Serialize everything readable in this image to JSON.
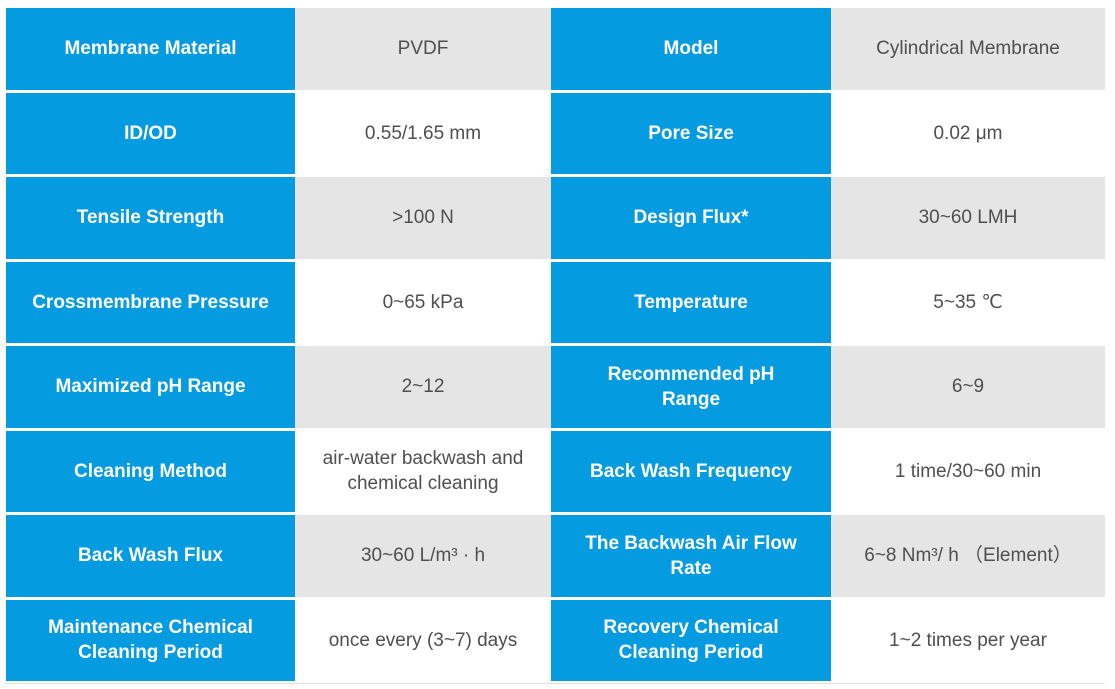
{
  "table": {
    "colors": {
      "label_bg": "#059be1",
      "label_text": "#ffffff",
      "value_bg_odd": "#e6e5e5",
      "value_bg_even": "#ffffff",
      "value_text": "#4f4f4f",
      "bottom_rule": "#dedede"
    },
    "rows": [
      {
        "label_left": "Membrane Material",
        "value_left": "PVDF",
        "label_right": "Model",
        "value_right": "Cylindrical Membrane"
      },
      {
        "label_left": "ID/OD",
        "value_left": "0.55/1.65 mm",
        "label_right": "Pore Size",
        "value_right": "0.02 μm"
      },
      {
        "label_left": "Tensile Strength",
        "value_left": ">100 N",
        "label_right": "Design Flux*",
        "value_right": "30~60 LMH"
      },
      {
        "label_left": "Crossmembrane Pressure",
        "value_left": "0~65 kPa",
        "label_right": "Temperature",
        "value_right": "5~35 ℃"
      },
      {
        "label_left": "Maximized pH Range",
        "value_left": "2~12",
        "label_right": "Recommended pH\nRange",
        "value_right": "6~9"
      },
      {
        "label_left": "Cleaning Method",
        "value_left": "air-water backwash and\nchemical cleaning",
        "label_right": "Back Wash Frequency",
        "value_right": "1 time/30~60 min"
      },
      {
        "label_left": "Back Wash Flux",
        "value_left": "30~60 L/m³ · h",
        "label_right": "The Backwash Air Flow\nRate",
        "value_right": "6~8 Nm³/ h （Element）"
      },
      {
        "label_left": "Maintenance Chemical\nCleaning Period",
        "value_left": "once every (3~7) days",
        "label_right": "Recovery Chemical\nCleaning Period",
        "value_right": "1~2 times per year"
      }
    ]
  }
}
